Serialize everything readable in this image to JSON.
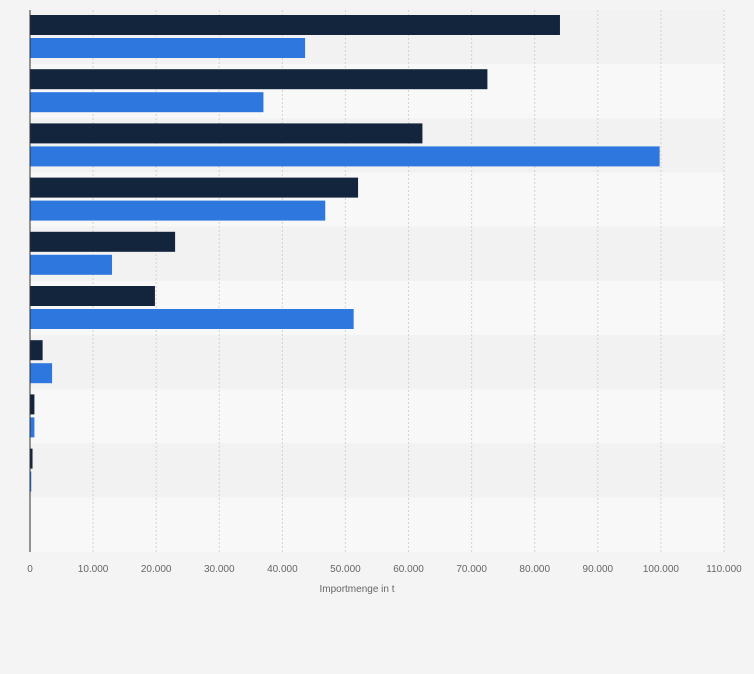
{
  "chart_data": {
    "type": "bar",
    "orientation": "horizontal",
    "categories": [
      "",
      "",
      "",
      "",
      "",
      "",
      "",
      "",
      "",
      ""
    ],
    "series": [
      {
        "values": [
          84000,
          72500,
          62200,
          52000,
          23000,
          19800,
          2000,
          700,
          400,
          0
        ]
      },
      {
        "values": [
          43600,
          37000,
          99800,
          46800,
          13000,
          51300,
          3500,
          700,
          200,
          0
        ]
      }
    ],
    "xlabel": "Importmenge in t",
    "ylabel": "",
    "xlim": [
      0,
      110000
    ],
    "x_ticks": [
      0,
      10000,
      20000,
      30000,
      40000,
      50000,
      60000,
      70000,
      80000,
      90000,
      100000,
      110000
    ],
    "x_tick_labels": [
      "0",
      "10.000",
      "20.000",
      "30.000",
      "40.000",
      "50.000",
      "60.000",
      "70.000",
      "80.000",
      "90.000",
      "100.000",
      "110.000"
    ],
    "grid": true,
    "legend": "none"
  },
  "colors": {
    "background": "#f4f4f4",
    "band_light": "#f8f8f8",
    "band_dark": "#f2f2f2",
    "series": [
      "#13243d",
      "#2e77de"
    ],
    "grid": "#d2d2d2",
    "axis": "#2f2f2f",
    "tick_text": "#666666"
  }
}
